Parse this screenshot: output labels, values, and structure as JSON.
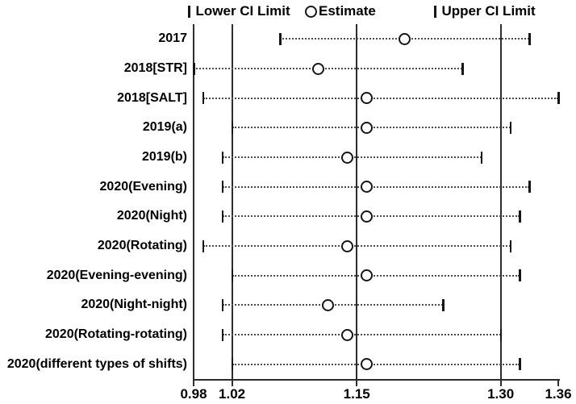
{
  "legend": {
    "items": [
      "Lower CI Limit",
      "Estimate",
      "Upper CI Limit"
    ]
  },
  "chart_data": {
    "type": "scatter",
    "variant": "forest-plot",
    "orientation": "horizontal",
    "title": "",
    "xlabel": "",
    "ylabel": "",
    "xlim": [
      0.98,
      1.36
    ],
    "x_tick_values": [
      0.98,
      1.02,
      1.15,
      1.3,
      1.36
    ],
    "x_tick_labels": [
      "0.98",
      "1.02",
      "1.15",
      "1.30",
      "1.36"
    ],
    "reference_lines_x": [
      0.98,
      1.02,
      1.15,
      1.3
    ],
    "grid": false,
    "legend_position": "top",
    "legend_entries": [
      "Lower CI Limit",
      "Estimate",
      "Upper CI Limit"
    ],
    "connector_style": "dotted line from lower CI to upper CI",
    "categories": [
      "2017",
      "2018[STR]",
      "2018[SALT]",
      "2019(a)",
      "2019(b)",
      "2020(Evening)",
      "2020(Night)",
      "2020(Rotating)",
      "2020(Evening-evening)",
      "2020(Night-night)",
      "2020(Rotating-rotating)",
      "2020(different types of shifts)"
    ],
    "series": [
      {
        "name": "Lower CI Limit",
        "marker": "vertical-tick",
        "values": [
          1.07,
          0.98,
          0.99,
          1.02,
          1.01,
          1.01,
          1.01,
          0.99,
          1.02,
          1.01,
          1.01,
          1.02
        ]
      },
      {
        "name": "Estimate",
        "marker": "open-circle",
        "values": [
          1.2,
          1.11,
          1.16,
          1.16,
          1.14,
          1.16,
          1.16,
          1.14,
          1.16,
          1.12,
          1.14,
          1.16
        ]
      },
      {
        "name": "Upper CI Limit",
        "marker": "vertical-tick",
        "values": [
          1.33,
          1.26,
          1.36,
          1.31,
          1.28,
          1.33,
          1.32,
          1.31,
          1.32,
          1.24,
          1.3,
          1.32
        ]
      }
    ]
  },
  "colors": {
    "background": "#ffffff",
    "line": "#2d2d2d",
    "marker": "#161616",
    "text": "#000000",
    "dotted_connector": "#4a4a4a"
  }
}
